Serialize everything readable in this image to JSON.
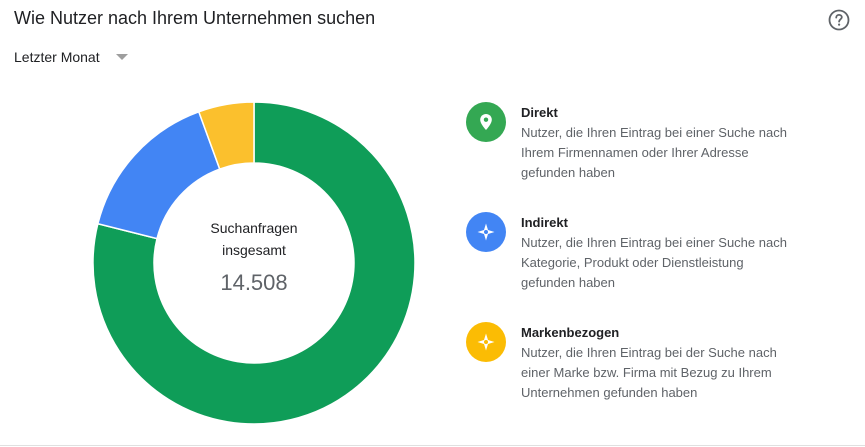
{
  "header": {
    "title": "Wie Nutzer nach Ihrem Unternehmen suchen",
    "help_icon": "help-circle-icon"
  },
  "filter": {
    "period_label": "Letzter Monat",
    "caret_icon": "caret-down-icon"
  },
  "chart_data": {
    "type": "pie",
    "style": "donut",
    "total": {
      "label_line1": "Suchanfragen",
      "label_line2": "insgesamt",
      "value_text": "14.508",
      "value": 14508
    },
    "slices": [
      {
        "name": "Direkt",
        "value": 11450,
        "color": "#0f9d58"
      },
      {
        "name": "Indirekt",
        "value": 2250,
        "color": "#4285f4"
      },
      {
        "name": "Markenbezogen",
        "value": 808,
        "color": "#fbc02d"
      }
    ],
    "start_angle_deg": 0,
    "direction": "clockwise",
    "legend_position": "right"
  },
  "legend": [
    {
      "name": "Direkt",
      "description": "Nutzer, die Ihren Eintrag bei einer Suche nach Ihrem Firmennamen oder Ihrer Adresse gefunden haben",
      "desc_lines": [
        "Nutzer, die Ihren Eintrag bei einer Suche nach",
        "Ihrem Firmennamen oder Ihrer Adresse",
        "gefunden haben"
      ],
      "icon": "map-pin-icon",
      "color": "#34a853"
    },
    {
      "name": "Indirekt",
      "description": "Nutzer, die Ihren Eintrag bei einer Suche nach Kategorie, Produkt oder Dienstleistung gefunden haben",
      "desc_lines": [
        "Nutzer, die Ihren Eintrag bei einer Suche nach",
        "Kategorie, Produkt oder Dienstleistung",
        "gefunden haben"
      ],
      "icon": "compass-icon",
      "color": "#4285f4"
    },
    {
      "name": "Markenbezogen",
      "description": "Nutzer, die Ihren Eintrag bei der Suche nach einer Marke bzw. Firma mit Bezug zu Ihrem Unternehmen gefunden haben",
      "desc_lines": [
        "Nutzer, die Ihren Eintrag bei der Suche nach",
        "einer Marke bzw. Firma mit Bezug zu Ihrem",
        "Unternehmen gefunden haben"
      ],
      "icon": "compass-icon",
      "color": "#fbbc04"
    }
  ]
}
